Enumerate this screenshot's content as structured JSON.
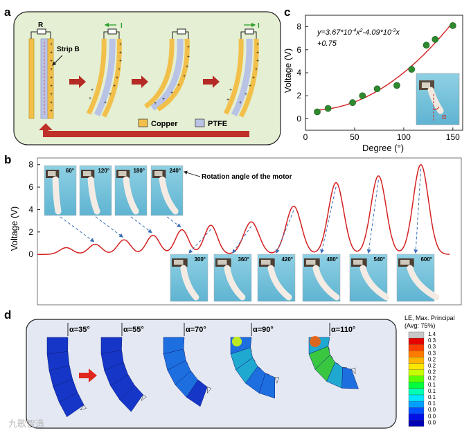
{
  "panels": {
    "a": {
      "label": "a",
      "resistor_label": "R",
      "strip_label": "Strip B",
      "current_label": "I",
      "legend": [
        {
          "name": "Copper",
          "color": "#f2c04a"
        },
        {
          "name": "PTFE",
          "color": "#b9c3e6"
        }
      ],
      "box_color": "#e4efd3",
      "arrow_color": "#c0302b"
    },
    "b": {
      "label": "b",
      "annotation": "Rotation angle of the motor",
      "angles_top": [
        "60°",
        "120°",
        "180°",
        "240°"
      ],
      "angles_bottom": [
        "300°",
        "360°",
        "420°",
        "480°",
        "540°",
        "600°"
      ]
    },
    "c": {
      "label": "c",
      "equation_line1": "y=3.67*10",
      "eq_exp1": "-4",
      "eq_mid": "x",
      "eq_exp2": "2",
      "eq_mid2": "-4.09*10",
      "eq_exp3": "-3",
      "eq_end": "x",
      "equation_line2": "+0.75",
      "inset_symbol": "α"
    },
    "d": {
      "label": "d",
      "alphas": [
        "α=35°",
        "α=55°",
        "α=70°",
        "α=90°",
        "α=110°"
      ],
      "legend_title_1": "LE, Max. Principal",
      "legend_title_2": "(Avg: 75%)",
      "legend_values": [
        "1.4",
        "0.3",
        "0.3",
        "0.3",
        "0.2",
        "0.2",
        "0.2",
        "0.2",
        "0.1",
        "0.1",
        "0.1",
        "0.1",
        "0.0",
        "0.0",
        "0.0"
      ],
      "legend_colors": [
        "#c8c8c8",
        "#e60000",
        "#ff3d00",
        "#ff7a00",
        "#ffb400",
        "#ffe600",
        "#c8ff00",
        "#5aff00",
        "#00ff3c",
        "#00ffb4",
        "#00e6ff",
        "#00a0ff",
        "#0050ff",
        "#0010e6",
        "#0000b4"
      ],
      "box_color": "#e3e8f2"
    },
    "watermark": "九歌智造"
  },
  "chart_data": [
    {
      "type": "scatter",
      "panel": "c",
      "title": "",
      "xlabel": "Degree (°)",
      "ylabel": "Voltage (V)",
      "xlim": [
        0,
        160
      ],
      "ylim": [
        -1,
        9
      ],
      "xticks": [
        0,
        50,
        100,
        150
      ],
      "yticks": [
        0,
        2,
        4,
        6,
        8
      ],
      "x": [
        12,
        23,
        48,
        58,
        73,
        93,
        108,
        123,
        132,
        150
      ],
      "y": [
        0.6,
        0.9,
        1.4,
        2.0,
        2.6,
        2.9,
        4.3,
        6.4,
        6.9,
        8.1
      ],
      "fit": {
        "a": 0.000367,
        "b": -0.00409,
        "c": 0.75,
        "x_range": [
          10,
          150
        ]
      },
      "marker_color": "#2f8a2f",
      "fit_color": "#d42020"
    },
    {
      "type": "line",
      "panel": "b",
      "title": "",
      "xlabel": "",
      "ylabel": "Voltage (V)",
      "xlim": [
        0,
        11
      ],
      "ylim": [
        -4.5,
        8.6
      ],
      "yticks": [
        0,
        2,
        4,
        6,
        8
      ],
      "peaks": [
        {
          "x": 0.75,
          "v": 0.6
        },
        {
          "x": 1.5,
          "v": 0.9
        },
        {
          "x": 2.25,
          "v": 1.3
        },
        {
          "x": 3.0,
          "v": 1.7
        },
        {
          "x": 3.75,
          "v": 2.2
        },
        {
          "x": 4.5,
          "v": 2.6
        },
        {
          "x": 5.55,
          "v": 2.9
        },
        {
          "x": 6.65,
          "v": 4.3
        },
        {
          "x": 7.75,
          "v": 6.4
        },
        {
          "x": 8.85,
          "v": 7.0
        },
        {
          "x": 9.95,
          "v": 8.0
        }
      ],
      "line_color": "#d42020"
    }
  ]
}
